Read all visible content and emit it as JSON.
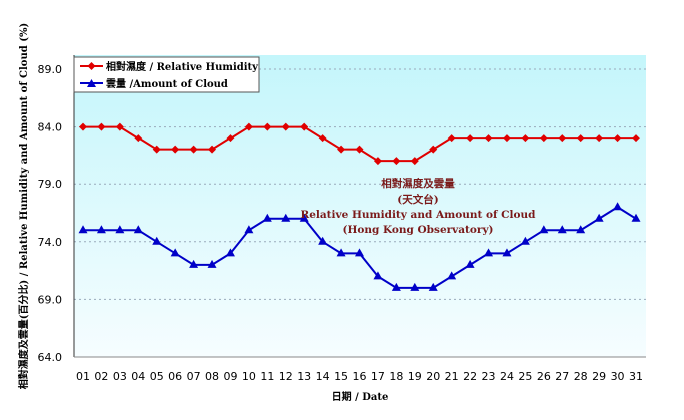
{
  "chart_data": {
    "type": "line",
    "title": "",
    "xlabel": "日期 / Date",
    "ylabel": "相對濕度及雲量(百分比) / Relative Humidity and Amount of Cloud (%)",
    "ylim": [
      64.0,
      89.0
    ],
    "yticks": [
      "64.0",
      "69.0",
      "74.0",
      "79.0",
      "84.0",
      "89.0"
    ],
    "categories": [
      "01",
      "02",
      "03",
      "04",
      "05",
      "06",
      "07",
      "08",
      "09",
      "10",
      "11",
      "12",
      "13",
      "14",
      "15",
      "16",
      "17",
      "18",
      "19",
      "20",
      "21",
      "22",
      "23",
      "24",
      "25",
      "26",
      "27",
      "28",
      "29",
      "30",
      "31"
    ],
    "grid": true,
    "legend_placement": "top-left",
    "annotation": [
      "相對濕度及雲量",
      "(天文台)",
      "Relative Humidity and Amount of Cloud",
      "(Hong Kong Observatory)"
    ],
    "series": [
      {
        "name": "相對濕度 / Relative Humidity",
        "color": "#e00000",
        "marker": "diamond",
        "values": [
          84,
          84,
          84,
          83,
          82,
          82,
          82,
          82,
          83,
          84,
          84,
          84,
          84,
          83,
          82,
          82,
          81,
          81,
          81,
          82,
          83,
          83,
          83,
          83,
          83,
          83,
          83,
          83,
          83,
          83,
          83
        ]
      },
      {
        "name": "雲量 /Amount of Cloud",
        "color": "#0000c8",
        "marker": "triangle",
        "values": [
          75,
          75,
          75,
          75,
          74,
          73,
          72,
          72,
          73,
          75,
          76,
          76,
          76,
          74,
          73,
          73,
          71,
          70,
          70,
          70,
          71,
          72,
          73,
          73,
          74,
          75,
          75,
          75,
          76,
          77,
          76
        ]
      }
    ]
  }
}
